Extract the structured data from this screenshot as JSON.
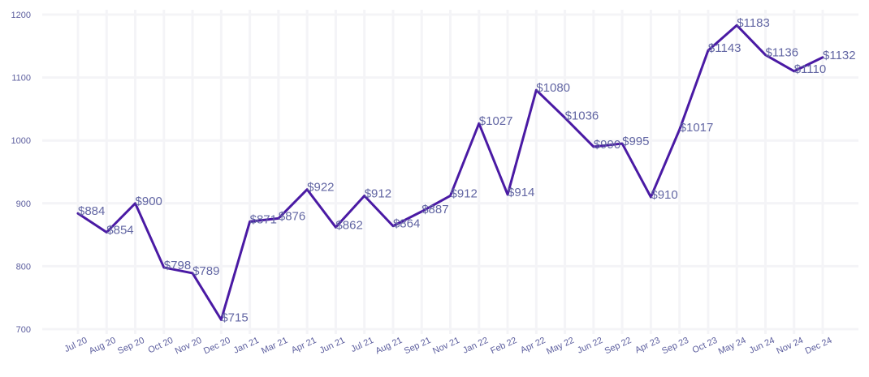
{
  "chart_data": {
    "type": "line",
    "title": "",
    "xlabel": "",
    "ylabel": "",
    "ylim": [
      700,
      1200
    ],
    "yticks": [
      700,
      800,
      900,
      1000,
      1100,
      1200
    ],
    "grid": true,
    "line_color": "#4a1aa4",
    "label_color": "#6266a3",
    "categories": [
      "Jul 20",
      "Aug 20",
      "Sep 20",
      "Oct 20",
      "Nov 20",
      "Dec 20",
      "Jan 21",
      "Mar 21",
      "Apr 21",
      "Jun 21",
      "Jul 21",
      "Aug 21",
      "Sep 21",
      "Nov 21",
      "Jan 22",
      "Feb 22",
      "Apr 22",
      "May 22",
      "Jun 22",
      "Sep 22",
      "Apr 23",
      "Sep 23",
      "Oct 23",
      "May 24",
      "Jun 24",
      "Nov 24",
      "Dec 24"
    ],
    "values": [
      884,
      854,
      900,
      798,
      789,
      715,
      871,
      876,
      922,
      862,
      912,
      864,
      887,
      912,
      1027,
      914,
      1080,
      1036,
      990,
      995,
      910,
      1017,
      1143,
      1183,
      1136,
      1110,
      1132
    ],
    "data_labels": [
      "$884",
      "$854",
      "$900",
      "$798",
      "$789",
      "$715",
      "$871",
      "$876",
      "$922",
      "$862",
      "$912",
      "$864",
      "$887",
      "$912",
      "$1027",
      "$914",
      "$1080",
      "$1036",
      "$990",
      "$995",
      "$910",
      "$1017",
      "$1143",
      "$1183",
      "$1136",
      "$1110",
      "$1132"
    ]
  }
}
